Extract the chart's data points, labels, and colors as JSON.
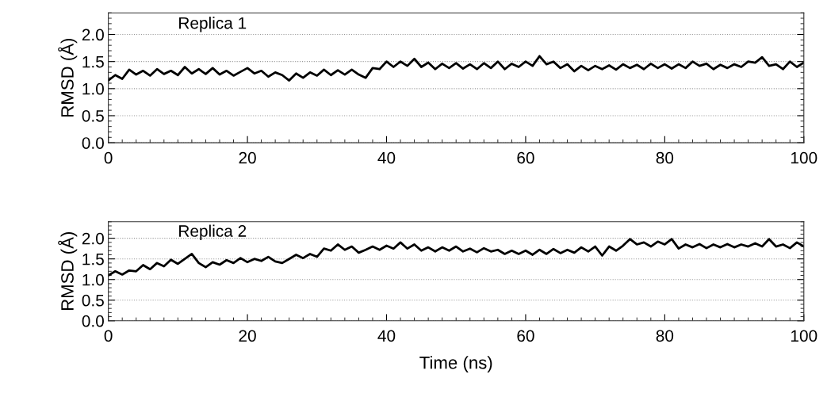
{
  "chart_data": [
    {
      "type": "line",
      "ylabel": "RMSD (Å)",
      "annotations": [
        "Replica 1"
      ],
      "xlim": [
        0,
        100
      ],
      "xticks": [
        0,
        20,
        40,
        60,
        80,
        100
      ],
      "ylim": [
        0,
        2.4
      ],
      "yticks": [
        {
          "value": 0,
          "label": "0.0"
        },
        {
          "value": 0.5,
          "label": "0.5"
        },
        {
          "value": 1,
          "label": "1.0"
        },
        {
          "value": 1.5,
          "label": "1.5"
        },
        {
          "value": 2,
          "label": "2.0"
        }
      ],
      "grid": "y",
      "x": [
        0,
        1,
        2,
        3,
        4,
        5,
        6,
        7,
        8,
        9,
        10,
        11,
        12,
        13,
        14,
        15,
        16,
        17,
        18,
        19,
        20,
        21,
        22,
        23,
        24,
        25,
        26,
        27,
        28,
        29,
        30,
        31,
        32,
        33,
        34,
        35,
        36,
        37,
        38,
        39,
        40,
        41,
        42,
        43,
        44,
        45,
        46,
        47,
        48,
        49,
        50,
        51,
        52,
        53,
        54,
        55,
        56,
        57,
        58,
        59,
        60,
        61,
        62,
        63,
        64,
        65,
        66,
        67,
        68,
        69,
        70,
        71,
        72,
        73,
        74,
        75,
        76,
        77,
        78,
        79,
        80,
        81,
        82,
        83,
        84,
        85,
        86,
        87,
        88,
        89,
        90,
        91,
        92,
        93,
        94,
        95,
        96,
        97,
        98,
        99,
        100
      ],
      "series": [
        {
          "color": "#000000",
          "values": [
            1.15,
            1.25,
            1.18,
            1.35,
            1.26,
            1.33,
            1.24,
            1.36,
            1.27,
            1.33,
            1.25,
            1.4,
            1.28,
            1.36,
            1.27,
            1.38,
            1.26,
            1.33,
            1.24,
            1.31,
            1.38,
            1.28,
            1.33,
            1.22,
            1.3,
            1.25,
            1.15,
            1.28,
            1.2,
            1.3,
            1.24,
            1.35,
            1.25,
            1.34,
            1.26,
            1.35,
            1.26,
            1.2,
            1.38,
            1.36,
            1.5,
            1.4,
            1.5,
            1.42,
            1.55,
            1.4,
            1.48,
            1.36,
            1.46,
            1.38,
            1.47,
            1.37,
            1.45,
            1.36,
            1.47,
            1.38,
            1.5,
            1.36,
            1.46,
            1.4,
            1.5,
            1.42,
            1.6,
            1.45,
            1.5,
            1.38,
            1.45,
            1.32,
            1.42,
            1.34,
            1.42,
            1.36,
            1.43,
            1.35,
            1.45,
            1.38,
            1.44,
            1.36,
            1.46,
            1.38,
            1.45,
            1.37,
            1.45,
            1.38,
            1.5,
            1.42,
            1.46,
            1.36,
            1.44,
            1.38,
            1.45,
            1.4,
            1.5,
            1.48,
            1.58,
            1.42,
            1.45,
            1.36,
            1.5,
            1.4,
            1.48
          ]
        }
      ]
    },
    {
      "type": "line",
      "xlabel": "Time (ns)",
      "ylabel": "RMSD (Å)",
      "annotations": [
        "Replica 2"
      ],
      "xlim": [
        0,
        100
      ],
      "xticks": [
        0,
        20,
        40,
        60,
        80,
        100
      ],
      "ylim": [
        0,
        2.4
      ],
      "yticks": [
        {
          "value": 0,
          "label": "0.0"
        },
        {
          "value": 0.5,
          "label": "0.5"
        },
        {
          "value": 1,
          "label": "1.0"
        },
        {
          "value": 1.5,
          "label": "1.5"
        },
        {
          "value": 2,
          "label": "2.0"
        }
      ],
      "grid": "y",
      "x": [
        0,
        1,
        2,
        3,
        4,
        5,
        6,
        7,
        8,
        9,
        10,
        11,
        12,
        13,
        14,
        15,
        16,
        17,
        18,
        19,
        20,
        21,
        22,
        23,
        24,
        25,
        26,
        27,
        28,
        29,
        30,
        31,
        32,
        33,
        34,
        35,
        36,
        37,
        38,
        39,
        40,
        41,
        42,
        43,
        44,
        45,
        46,
        47,
        48,
        49,
        50,
        51,
        52,
        53,
        54,
        55,
        56,
        57,
        58,
        59,
        60,
        61,
        62,
        63,
        64,
        65,
        66,
        67,
        68,
        69,
        70,
        71,
        72,
        73,
        74,
        75,
        76,
        77,
        78,
        79,
        80,
        81,
        82,
        83,
        84,
        85,
        86,
        87,
        88,
        89,
        90,
        91,
        92,
        93,
        94,
        95,
        96,
        97,
        98,
        99,
        100
      ],
      "series": [
        {
          "color": "#000000",
          "values": [
            1.1,
            1.2,
            1.12,
            1.22,
            1.2,
            1.35,
            1.25,
            1.4,
            1.32,
            1.48,
            1.38,
            1.5,
            1.62,
            1.4,
            1.3,
            1.42,
            1.36,
            1.47,
            1.4,
            1.52,
            1.42,
            1.5,
            1.45,
            1.55,
            1.44,
            1.4,
            1.5,
            1.6,
            1.52,
            1.62,
            1.55,
            1.75,
            1.7,
            1.85,
            1.72,
            1.8,
            1.65,
            1.72,
            1.8,
            1.72,
            1.82,
            1.75,
            1.9,
            1.75,
            1.85,
            1.7,
            1.78,
            1.68,
            1.78,
            1.7,
            1.8,
            1.68,
            1.75,
            1.66,
            1.76,
            1.68,
            1.72,
            1.62,
            1.7,
            1.62,
            1.7,
            1.6,
            1.72,
            1.62,
            1.74,
            1.64,
            1.72,
            1.65,
            1.78,
            1.68,
            1.8,
            1.58,
            1.8,
            1.7,
            1.82,
            1.98,
            1.85,
            1.9,
            1.8,
            1.92,
            1.85,
            1.98,
            1.75,
            1.85,
            1.78,
            1.86,
            1.76,
            1.85,
            1.78,
            1.86,
            1.78,
            1.85,
            1.8,
            1.88,
            1.8,
            1.98,
            1.8,
            1.85,
            1.76,
            1.9,
            1.8
          ]
        }
      ]
    }
  ]
}
